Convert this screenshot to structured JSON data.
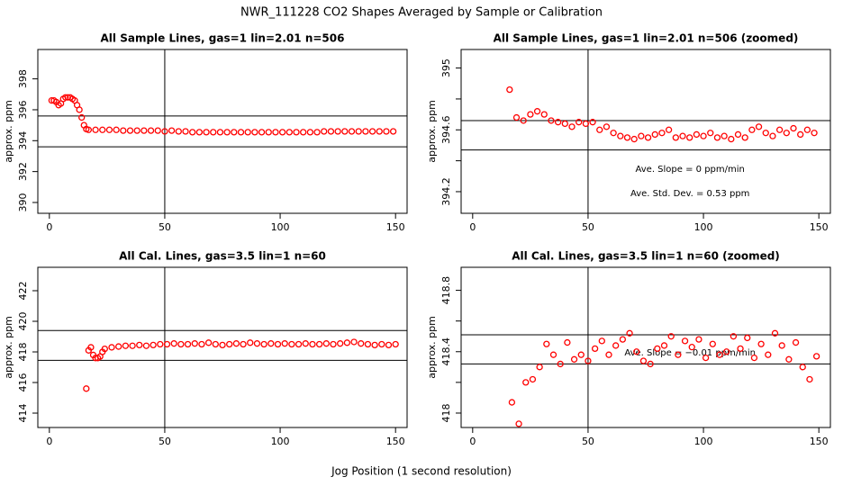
{
  "title": "NWR_111228  CO2 Shapes Averaged by Sample or Calibration",
  "xlabel": "Jog Position (1 second resolution)",
  "chart_data": [
    {
      "type": "scatter",
      "title": "All Sample Lines, gas=1 lin=2.01 n=506",
      "ylabel": "approx. ppm",
      "color": "#ff0000",
      "xlim": [
        -5,
        155
      ],
      "xticks": [
        0,
        50,
        100,
        150
      ],
      "ylim": [
        389.3,
        399.9
      ],
      "yticks": [
        390,
        392,
        394,
        396,
        398
      ],
      "hlines": [
        393.6,
        395.6
      ],
      "vlines": [
        50
      ],
      "annotations": [],
      "x": [
        1,
        2,
        3,
        4,
        5,
        6,
        7,
        8,
        9,
        10,
        11,
        12,
        13,
        14,
        15,
        16,
        17,
        20,
        23,
        26,
        29,
        32,
        35,
        38,
        41,
        44,
        47,
        50,
        53,
        56,
        59,
        62,
        65,
        68,
        71,
        74,
        77,
        80,
        83,
        86,
        89,
        92,
        95,
        98,
        101,
        104,
        107,
        110,
        113,
        116,
        119,
        122,
        125,
        128,
        131,
        134,
        137,
        140,
        143,
        146,
        149
      ],
      "values": [
        396.6,
        396.6,
        396.5,
        396.3,
        396.4,
        396.7,
        396.8,
        396.8,
        396.8,
        396.7,
        396.6,
        396.3,
        396.0,
        395.5,
        395.0,
        394.75,
        394.7,
        394.7,
        394.7,
        394.7,
        394.7,
        394.65,
        394.65,
        394.65,
        394.65,
        394.65,
        394.65,
        394.6,
        394.65,
        394.6,
        394.6,
        394.55,
        394.55,
        394.55,
        394.55,
        394.55,
        394.55,
        394.55,
        394.55,
        394.55,
        394.55,
        394.55,
        394.55,
        394.55,
        394.55,
        394.55,
        394.55,
        394.55,
        394.55,
        394.55,
        394.6,
        394.6,
        394.6,
        394.6,
        394.6,
        394.6,
        394.6,
        394.6,
        394.6,
        394.6,
        394.6
      ]
    },
    {
      "type": "scatter",
      "title": "All Sample Lines, gas=1 lin=2.01 n=506 (zoomed)",
      "ylabel": "approx. ppm",
      "color": "#ff0000",
      "xlim": [
        -5,
        155
      ],
      "xticks": [
        0,
        50,
        100,
        150
      ],
      "ylim": [
        394.06,
        395.12
      ],
      "yticks": [
        394.2,
        394.6,
        395.0
      ],
      "yticks_minor": [
        394.4,
        394.8
      ],
      "hlines": [
        394.66,
        394.47
      ],
      "vlines": [
        50
      ],
      "annotations": [
        "Ave. Slope =  0  ppm/min",
        "Ave. Std. Dev. =  0.53  ppm"
      ],
      "x": [
        16,
        19,
        22,
        25,
        28,
        31,
        34,
        37,
        40,
        43,
        46,
        49,
        52,
        55,
        58,
        61,
        64,
        67,
        70,
        73,
        76,
        79,
        82,
        85,
        88,
        91,
        94,
        97,
        100,
        103,
        106,
        109,
        112,
        115,
        118,
        121,
        124,
        127,
        130,
        133,
        136,
        139,
        142,
        145,
        148
      ],
      "values": [
        394.86,
        394.68,
        394.66,
        394.7,
        394.72,
        394.7,
        394.66,
        394.65,
        394.64,
        394.62,
        394.65,
        394.64,
        394.65,
        394.6,
        394.62,
        394.58,
        394.56,
        394.55,
        394.54,
        394.56,
        394.55,
        394.57,
        394.58,
        394.6,
        394.55,
        394.56,
        394.55,
        394.57,
        394.56,
        394.58,
        394.55,
        394.56,
        394.54,
        394.57,
        394.55,
        394.6,
        394.62,
        394.58,
        394.56,
        394.6,
        394.58,
        394.61,
        394.57,
        394.6,
        394.58
      ]
    },
    {
      "type": "scatter",
      "title": "All Cal. Lines, gas=3.5 lin=1 n=60",
      "ylabel": "approx. ppm",
      "color": "#ff0000",
      "xlim": [
        -5,
        155
      ],
      "xticks": [
        0,
        50,
        100,
        150
      ],
      "ylim": [
        413.06,
        423.53
      ],
      "yticks": [
        414,
        416,
        418,
        420,
        422
      ],
      "hlines": [
        419.4,
        417.45
      ],
      "vlines": [
        50
      ],
      "annotations": [],
      "x": [
        16,
        17,
        18,
        19,
        20,
        21,
        22,
        23,
        24,
        27,
        30,
        33,
        36,
        39,
        42,
        45,
        48,
        51,
        54,
        57,
        60,
        63,
        66,
        69,
        72,
        75,
        78,
        81,
        84,
        87,
        90,
        93,
        96,
        99,
        102,
        105,
        108,
        111,
        114,
        117,
        120,
        123,
        126,
        129,
        132,
        135,
        138,
        141,
        144,
        147,
        150
      ],
      "values": [
        415.6,
        418.1,
        418.3,
        417.8,
        417.6,
        417.6,
        417.7,
        418.0,
        418.2,
        418.3,
        418.35,
        418.4,
        418.4,
        418.45,
        418.4,
        418.45,
        418.5,
        418.5,
        418.55,
        418.5,
        418.5,
        418.55,
        418.5,
        418.6,
        418.5,
        418.45,
        418.5,
        418.55,
        418.5,
        418.6,
        418.55,
        418.5,
        418.55,
        418.5,
        418.55,
        418.5,
        418.5,
        418.55,
        418.5,
        418.5,
        418.55,
        418.5,
        418.55,
        418.6,
        418.65,
        418.55,
        418.5,
        418.45,
        418.5,
        418.45,
        418.5
      ]
    },
    {
      "type": "scatter",
      "title": "All Cal. Lines, gas=3.5 lin=1 n=60 (zoomed)",
      "ylabel": "approx. ppm",
      "color": "#ff0000",
      "xlim": [
        -5,
        155
      ],
      "xticks": [
        0,
        50,
        100,
        150
      ],
      "ylim": [
        417.906,
        418.95
      ],
      "yticks": [
        418.0,
        418.4,
        418.8
      ],
      "yticks_minor": [
        418.2,
        418.6
      ],
      "hlines": [
        418.51,
        418.32
      ],
      "vlines": [
        50
      ],
      "annotations": [
        "Ave. Slope =  −0.01  ppm/min"
      ],
      "x": [
        17,
        20,
        23,
        26,
        29,
        32,
        35,
        38,
        41,
        44,
        47,
        50,
        53,
        56,
        59,
        62,
        65,
        68,
        71,
        74,
        77,
        80,
        83,
        86,
        89,
        92,
        95,
        98,
        101,
        104,
        107,
        110,
        113,
        116,
        119,
        122,
        125,
        128,
        131,
        134,
        137,
        140,
        143,
        146,
        149
      ],
      "values": [
        418.07,
        417.93,
        418.2,
        418.22,
        418.3,
        418.45,
        418.38,
        418.32,
        418.46,
        418.35,
        418.38,
        418.34,
        418.42,
        418.47,
        418.38,
        418.44,
        418.48,
        418.52,
        418.4,
        418.34,
        418.32,
        418.42,
        418.44,
        418.5,
        418.38,
        418.47,
        418.43,
        418.48,
        418.36,
        418.45,
        418.38,
        418.4,
        418.5,
        418.42,
        418.49,
        418.36,
        418.45,
        418.38,
        418.52,
        418.44,
        418.35,
        418.46,
        418.3,
        418.22,
        418.37
      ]
    }
  ]
}
